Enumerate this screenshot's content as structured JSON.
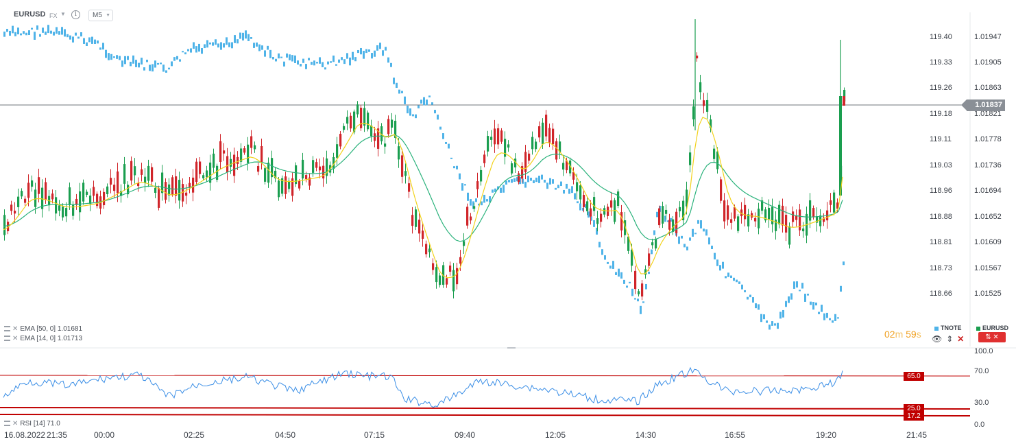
{
  "header": {
    "symbol": "EURUSD",
    "type": "FX",
    "timeframe": "M5",
    "icons": [
      "chevron-down-icon",
      "info-icon"
    ]
  },
  "current_price": "1.01837",
  "axis_left": [
    "119.40",
    "119.33",
    "119.26",
    "119.18",
    "119.11",
    "119.03",
    "118.96",
    "118.88",
    "118.81",
    "118.73",
    "118.66"
  ],
  "axis_right": [
    "1.01947",
    "1.01905",
    "1.01863",
    "1.01821",
    "1.01778",
    "1.01736",
    "1.01694",
    "1.01652",
    "1.01609",
    "1.01567",
    "1.01525"
  ],
  "indicators": {
    "ema50": "EMA [50, 0]  1.01681",
    "ema14": "EMA [14, 0]  1.01713",
    "rsi": "RSI [14]  71.0"
  },
  "timer": {
    "minutes": "02",
    "m_unit": "m",
    "seconds": "59",
    "s_unit": "s"
  },
  "legend": {
    "tnote": "TNOTE",
    "eurusd": "EURUSD",
    "tnote_color": "#4fb3e8",
    "eurusd_color": "#1a9e4f"
  },
  "rsi_axis": [
    "100.0",
    "70.0",
    "30.0",
    "0.0"
  ],
  "rsi_levels": [
    "65.0",
    "25.0",
    "17.2"
  ],
  "time_axis": [
    "16.08.2022",
    "21:35",
    "00:00",
    "02:25",
    "04:50",
    "07:15",
    "09:40",
    "12:05",
    "14:30",
    "16:55",
    "19:20",
    "21:45"
  ],
  "colors": {
    "bull": "#1a9e4f",
    "bear": "#d0252a",
    "tnote": "#4fb3e8",
    "ema14": "#f2d21b",
    "ema50": "#2ab27b",
    "rsi": "#3a8ee6",
    "level": "#c00000"
  }
}
